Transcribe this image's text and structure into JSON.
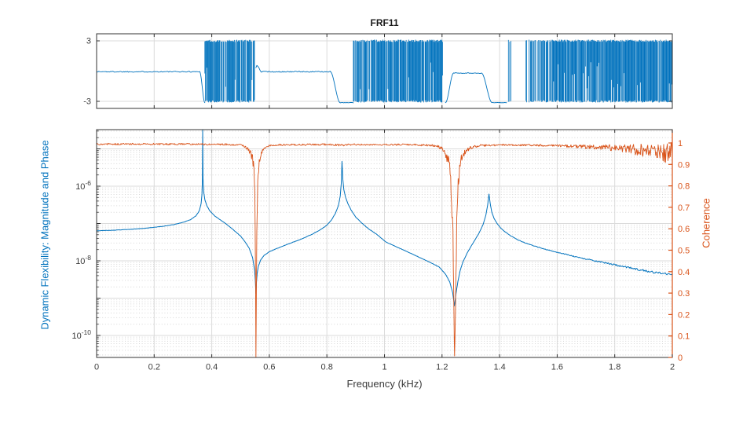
{
  "figure": {
    "background": "#ffffff"
  },
  "colors": {
    "blue": "#0072BD",
    "orange": "#D95319",
    "axis": "#333333",
    "tick_label": "#3b3b3b",
    "grid_major": "#dbdbdb",
    "grid_minor": "#d6d6d6"
  },
  "chart_data": [
    {
      "type": "line",
      "id": "phase",
      "title": "FRF11",
      "x_range": [
        0,
        2
      ],
      "y_range": [
        -3.7,
        3.7
      ],
      "x_ticks": [
        0,
        0.2,
        0.4,
        0.6,
        0.8,
        1,
        1.2,
        1.4,
        1.6,
        1.8,
        2
      ],
      "x_tick_labels_visible": false,
      "y_ticks": [
        3,
        -3
      ],
      "y_tick_labels": [
        "3",
        "-3"
      ],
      "line_color": "#0072BD",
      "series_name": "Phase (rad)",
      "segments": [
        {
          "kind": "flat",
          "x0": 0.0,
          "x1": 0.358,
          "y": -0.06,
          "noise": 0.05
        },
        {
          "kind": "step",
          "x0": 0.358,
          "x1": 0.376,
          "y0": -0.06,
          "y1": -3.13
        },
        {
          "kind": "band",
          "x0": 0.376,
          "x1": 0.5525,
          "ymin": -3.12,
          "ymax": 3.12,
          "density": 0.88
        },
        {
          "kind": "flat",
          "x0": 0.5535,
          "x1": 0.56,
          "y": 0.45,
          "noise": 0.12
        },
        {
          "kind": "step",
          "x0": 0.56,
          "x1": 0.572,
          "y0": 0.45,
          "y1": -0.06
        },
        {
          "kind": "flat",
          "x0": 0.572,
          "x1": 0.812,
          "y": -0.06,
          "noise": 0.05
        },
        {
          "kind": "step",
          "x0": 0.812,
          "x1": 0.846,
          "y0": -0.06,
          "y1": -3.13
        },
        {
          "kind": "flat",
          "x0": 0.846,
          "x1": 0.892,
          "y": -3.13,
          "noise": 0.02
        },
        {
          "kind": "band",
          "x0": 0.892,
          "x1": 1.206,
          "ymin": -3.12,
          "ymax": 3.12,
          "density": 0.92
        },
        {
          "kind": "step",
          "x0": 1.212,
          "x1": 1.24,
          "y0": -3.13,
          "y1": -0.2
        },
        {
          "kind": "flat",
          "x0": 1.24,
          "x1": 1.337,
          "y": -0.2,
          "noise": 0.04
        },
        {
          "kind": "step",
          "x0": 1.337,
          "x1": 1.374,
          "y0": -0.2,
          "y1": -3.13
        },
        {
          "kind": "flat",
          "x0": 1.374,
          "x1": 1.424,
          "y": -3.13,
          "noise": 0.02
        },
        {
          "kind": "band",
          "x0": 1.424,
          "x1": 2.0,
          "ymin": -3.12,
          "ymax": 3.12,
          "density": [
            [
              1.424,
              0.12
            ],
            [
              1.455,
              0.2
            ],
            [
              1.49,
              0.35
            ],
            [
              1.525,
              0.6
            ],
            [
              1.555,
              0.85
            ],
            [
              1.59,
              1
            ],
            [
              2.0,
              1
            ]
          ]
        }
      ]
    },
    {
      "type": "line",
      "id": "magnitude-coherence",
      "xlabel": "Frequency (kHz)",
      "ylabel_left": "Dynamic Flexibility: Magnitude and Phase",
      "ylabel_right": "Coherence",
      "x_range": [
        0,
        2
      ],
      "x_ticks": [
        0,
        0.2,
        0.4,
        0.6,
        0.8,
        1,
        1.2,
        1.4,
        1.6,
        1.8,
        2
      ],
      "x_tick_labels": [
        "0",
        "0.2",
        "0.4",
        "0.6",
        "0.8",
        "1",
        "1.2",
        "1.4",
        "1.6",
        "1.8",
        "2"
      ],
      "y_left": {
        "scale": "log",
        "tick_exponents": [
          -6,
          -8,
          -10
        ],
        "grid_exponents": [
          -5,
          -6,
          -7,
          -8,
          -9,
          -10
        ],
        "minor_exponents": [
          -5,
          -6,
          -7,
          -8,
          -9,
          -10,
          -11
        ],
        "color": "#0072BD"
      },
      "y_right": {
        "ticks": [
          0,
          0.1,
          0.2,
          0.3,
          0.4,
          0.5,
          0.6,
          0.7,
          0.8,
          0.9,
          1
        ],
        "tick_labels": [
          "0",
          "0.1",
          "0.2",
          "0.3",
          "0.4",
          "0.5",
          "0.6",
          "0.7",
          "0.8",
          "0.9",
          "1"
        ],
        "range": [
          0,
          1.062
        ],
        "color": "#D95319"
      },
      "seed": 1337,
      "series": [
        {
          "name": "Dynamic Flexibility Magnitude",
          "axis": "left",
          "color": "#0072BD",
          "noise_base_decades": 0.004,
          "noise_grow_from": 1.43,
          "noise_grow_rate": 0.045,
          "points": [
            [
              0.0,
              6.4e-08
            ],
            [
              0.06,
              6.6e-08
            ],
            [
              0.12,
              7e-08
            ],
            [
              0.18,
              7.6e-08
            ],
            [
              0.23,
              8.4e-08
            ],
            [
              0.27,
              9.4e-08
            ],
            [
              0.3,
              1.07e-07
            ],
            [
              0.325,
              1.25e-07
            ],
            [
              0.345,
              1.6e-07
            ],
            [
              0.357,
              2.2e-07
            ],
            [
              0.363,
              3.4e-07
            ],
            [
              0.366,
              6e-07
            ],
            [
              0.3676,
              1.6e-06
            ],
            [
              0.3685,
              4.2e-05
            ],
            [
              0.3697,
              1.6e-06
            ],
            [
              0.372,
              7e-07
            ],
            [
              0.376,
              4.4e-07
            ],
            [
              0.383,
              3e-07
            ],
            [
              0.393,
              2.2e-07
            ],
            [
              0.41,
              1.6e-07
            ],
            [
              0.43,
              1.25e-07
            ],
            [
              0.454,
              9.2e-08
            ],
            [
              0.475,
              6.8e-08
            ],
            [
              0.5,
              4.6e-08
            ],
            [
              0.515,
              3.3e-08
            ],
            [
              0.53,
              2.2e-08
            ],
            [
              0.542,
              1.2e-08
            ],
            [
              0.549,
              5.5e-09
            ],
            [
              0.5518,
              2.6e-09
            ],
            [
              0.5535,
              1.35e-09
            ],
            [
              0.5553,
              2.6e-09
            ],
            [
              0.558,
              4.8e-09
            ],
            [
              0.562,
              7.2e-09
            ],
            [
              0.57,
              1.05e-08
            ],
            [
              0.582,
              1.4e-08
            ],
            [
              0.6,
              1.75e-08
            ],
            [
              0.63,
              2.2e-08
            ],
            [
              0.67,
              2.9e-08
            ],
            [
              0.71,
              3.8e-08
            ],
            [
              0.75,
              5.2e-08
            ],
            [
              0.78,
              7e-08
            ],
            [
              0.8,
              9e-08
            ],
            [
              0.816,
              1.25e-07
            ],
            [
              0.83,
              1.9e-07
            ],
            [
              0.84,
              3e-07
            ],
            [
              0.8465,
              5.5e-07
            ],
            [
              0.85,
              1.2e-06
            ],
            [
              0.8525,
              4.6e-06
            ],
            [
              0.8555,
              1.5e-06
            ],
            [
              0.859,
              8e-07
            ],
            [
              0.865,
              5e-07
            ],
            [
              0.873,
              3.4e-07
            ],
            [
              0.884,
              2.3e-07
            ],
            [
              0.9,
              1.5e-07
            ],
            [
              0.92,
              1.05e-07
            ],
            [
              0.945,
              7.2e-08
            ],
            [
              0.975,
              5e-08
            ],
            [
              1.005,
              3.2e-08
            ],
            [
              1.04,
              2.4e-08
            ],
            [
              1.08,
              1.75e-08
            ],
            [
              1.12,
              1.25e-08
            ],
            [
              1.16,
              9e-09
            ],
            [
              1.19,
              6.8e-09
            ],
            [
              1.212,
              4.4e-09
            ],
            [
              1.227,
              2.7e-09
            ],
            [
              1.237,
              1.4e-09
            ],
            [
              1.243,
              6.2e-10
            ],
            [
              1.249,
              1.4e-09
            ],
            [
              1.2555,
              2.9e-09
            ],
            [
              1.263,
              5.5e-09
            ],
            [
              1.273,
              9.5e-09
            ],
            [
              1.287,
              1.6e-08
            ],
            [
              1.3,
              2.4e-08
            ],
            [
              1.315,
              3.7e-08
            ],
            [
              1.33,
              5.8e-08
            ],
            [
              1.343,
              9.5e-08
            ],
            [
              1.3525,
              1.7e-07
            ],
            [
              1.3585,
              3.1e-07
            ],
            [
              1.363,
              6.2e-07
            ],
            [
              1.3675,
              3.4e-07
            ],
            [
              1.373,
              2e-07
            ],
            [
              1.381,
              1.35e-07
            ],
            [
              1.392,
              9.8e-08
            ],
            [
              1.405,
              7.4e-08
            ],
            [
              1.42,
              5.9e-08
            ],
            [
              1.44,
              4.6e-08
            ],
            [
              1.465,
              3.6e-08
            ],
            [
              1.5,
              2.8e-08
            ],
            [
              1.54,
              2.25e-08
            ],
            [
              1.58,
              1.85e-08
            ],
            [
              1.63,
              1.5e-08
            ],
            [
              1.68,
              1.2e-08
            ],
            [
              1.73,
              1e-08
            ],
            [
              1.78,
              8.4e-09
            ],
            [
              1.83,
              7e-09
            ],
            [
              1.88,
              5.9e-09
            ],
            [
              1.93,
              5e-09
            ],
            [
              1.97,
              4.5e-09
            ],
            [
              2.0,
              4.2e-09
            ]
          ]
        },
        {
          "name": "Coherence",
          "axis": "right",
          "color": "#D95319",
          "points": [
            [
              0.0,
              0.995,
              0.004
            ],
            [
              0.3,
              0.995,
              0.004
            ],
            [
              0.45,
              0.993,
              0.004
            ],
            [
              0.505,
              0.99,
              0.004
            ],
            [
              0.516,
              0.982,
              0.005
            ],
            [
              0.525,
              0.972,
              0.008
            ],
            [
              0.533,
              0.958,
              0.012
            ],
            [
              0.54,
              0.935,
              0.02
            ],
            [
              0.545,
              0.9,
              0.03
            ],
            [
              0.5485,
              0.84,
              0.04
            ],
            [
              0.551,
              0.62,
              0.06
            ],
            [
              0.5525,
              0.3,
              0.05
            ],
            [
              0.5535,
              0.005,
              0.005
            ],
            [
              0.5548,
              0.25,
              0.05
            ],
            [
              0.5565,
              0.55,
              0.06
            ],
            [
              0.5585,
              0.75,
              0.05
            ],
            [
              0.561,
              0.855,
              0.04
            ],
            [
              0.565,
              0.915,
              0.02
            ],
            [
              0.571,
              0.95,
              0.012
            ],
            [
              0.58,
              0.972,
              0.008
            ],
            [
              0.595,
              0.985,
              0.005
            ],
            [
              0.62,
              0.991,
              0.004
            ],
            [
              0.8,
              0.993,
              0.004
            ],
            [
              0.85,
              0.99,
              0.005
            ],
            [
              0.9,
              0.993,
              0.004
            ],
            [
              1.1,
              0.992,
              0.004
            ],
            [
              1.17,
              0.988,
              0.005
            ],
            [
              1.195,
              0.978,
              0.008
            ],
            [
              1.208,
              0.965,
              0.015
            ],
            [
              1.217,
              0.94,
              0.03
            ],
            [
              1.2245,
              0.9,
              0.05
            ],
            [
              1.23,
              0.83,
              0.07
            ],
            [
              1.2345,
              0.72,
              0.08
            ],
            [
              1.238,
              0.55,
              0.08
            ],
            [
              1.2405,
              0.35,
              0.07
            ],
            [
              1.2425,
              0.1,
              0.04
            ],
            [
              1.2435,
              0.005,
              0.005
            ],
            [
              1.2455,
              0.15,
              0.05
            ],
            [
              1.248,
              0.4,
              0.08
            ],
            [
              1.251,
              0.6,
              0.08
            ],
            [
              1.2545,
              0.75,
              0.06
            ],
            [
              1.259,
              0.855,
              0.045
            ],
            [
              1.265,
              0.91,
              0.03
            ],
            [
              1.273,
              0.945,
              0.018
            ],
            [
              1.284,
              0.965,
              0.01
            ],
            [
              1.3,
              0.978,
              0.007
            ],
            [
              1.33,
              0.988,
              0.005
            ],
            [
              1.4,
              0.991,
              0.004
            ],
            [
              1.5,
              0.99,
              0.004
            ],
            [
              1.58,
              0.988,
              0.005
            ],
            [
              1.65,
              0.985,
              0.007
            ],
            [
              1.72,
              0.982,
              0.01
            ],
            [
              1.79,
              0.978,
              0.015
            ],
            [
              1.85,
              0.972,
              0.022
            ],
            [
              1.9,
              0.966,
              0.03
            ],
            [
              1.94,
              0.96,
              0.038
            ],
            [
              1.97,
              0.953,
              0.047
            ],
            [
              2.0,
              0.948,
              0.055
            ]
          ]
        }
      ]
    }
  ]
}
